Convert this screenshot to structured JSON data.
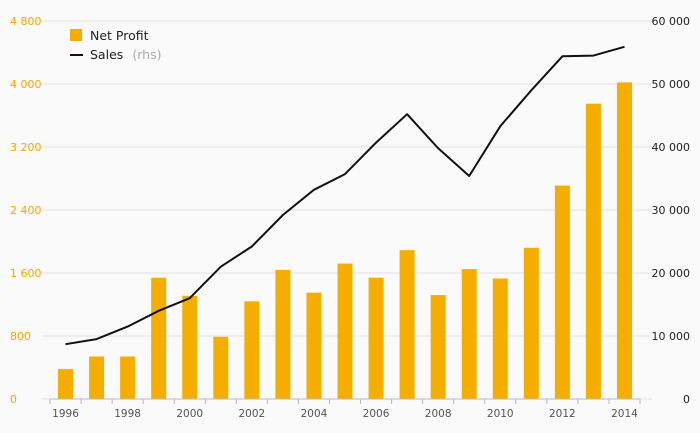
{
  "chart_data": {
    "type": "bar",
    "title": "",
    "x": [
      1996,
      1997,
      1998,
      1999,
      2000,
      2001,
      2002,
      2003,
      2004,
      2005,
      2006,
      2007,
      2008,
      2009,
      2010,
      2011,
      2012,
      2013,
      2014
    ],
    "x_tick_labels": [
      "1996",
      "1998",
      "2000",
      "2002",
      "2004",
      "2006",
      "2008",
      "2010",
      "2012",
      "2014"
    ],
    "series": [
      {
        "name": "Net Profit",
        "type": "bar",
        "axis": "left",
        "color": "#f5ae00",
        "values": [
          380,
          540,
          540,
          1540,
          1310,
          790,
          1240,
          1640,
          1350,
          1720,
          1540,
          1890,
          1320,
          1650,
          1530,
          1920,
          2710,
          3750,
          4020
        ]
      },
      {
        "name": "Sales",
        "name_suffix": "(rhs)",
        "type": "line",
        "axis": "right",
        "color": "#111111",
        "values": [
          8700,
          9500,
          11500,
          14000,
          16000,
          21000,
          24200,
          29200,
          33200,
          35700,
          40700,
          45200,
          39800,
          35400,
          43300,
          49000,
          54400,
          54500,
          55900
        ]
      }
    ],
    "left_axis": {
      "ylim": [
        0,
        4800
      ],
      "ticks": [
        0,
        800,
        1600,
        2400,
        3200,
        4000,
        4800
      ],
      "tick_labels": [
        "0",
        "800",
        "1 600",
        "2 400",
        "3 200",
        "4 000",
        "4 800"
      ],
      "color": "#f5a400"
    },
    "right_axis": {
      "ylim": [
        0,
        60000
      ],
      "ticks": [
        0,
        10000,
        20000,
        30000,
        40000,
        50000,
        60000
      ],
      "tick_labels": [
        "0",
        "10 000",
        "20 000",
        "30 000",
        "40 000",
        "50 000",
        "60 000"
      ],
      "color": "#222222"
    },
    "grid": true,
    "legend_position": "top-left"
  }
}
